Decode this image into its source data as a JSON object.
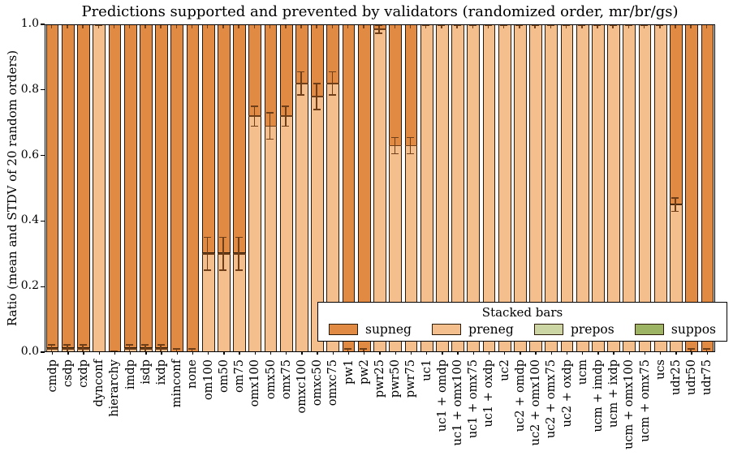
{
  "title": "Predictions supported and prevented by validators (randomized order, mr/br/gs)",
  "axes": {
    "ylabel": "Ratio (mean and STDV of 20 random orders)",
    "yticks": [
      "0.0",
      "0.2",
      "0.4",
      "0.6",
      "0.8",
      "1.0"
    ]
  },
  "legend": {
    "title": "Stacked bars",
    "entries": [
      {
        "label": "supneg",
        "color": "#E08A44"
      },
      {
        "label": "preneg",
        "color": "#F4BF8D"
      },
      {
        "label": "prepos",
        "color": "#CBD6A4"
      },
      {
        "label": "suppos",
        "color": "#9CB464"
      }
    ]
  },
  "colors": {
    "edge": "#2b1a08",
    "error_bar": "#6e3f18",
    "axis": "#000000",
    "background": "#ffffff"
  },
  "chart_data": {
    "type": "bar",
    "stacked": true,
    "title": "Predictions supported and prevented by validators (randomized order, mr/br/gs)",
    "xlabel": "",
    "ylabel": "Ratio (mean and STDV of 20 random orders)",
    "ylim": [
      0.0,
      1.0
    ],
    "grid": false,
    "legend_title": "Stacked bars",
    "legend_position": "lower right",
    "error_bars": "STDV of 20 random orders, drawn at the preneg/supneg boundary and at stack top",
    "categories": [
      "cmdp",
      "csdp",
      "cxdp",
      "dynconf",
      "hierarchy",
      "imdp",
      "isdp",
      "ixdp",
      "minconf",
      "none",
      "om100",
      "om50",
      "om75",
      "omx100",
      "omx50",
      "omx75",
      "omxc100",
      "omxc50",
      "omxc75",
      "pw1",
      "pw2",
      "pwr25",
      "pwr50",
      "pwr75",
      "uc1",
      "uc1 + omdp",
      "uc1 + omx100",
      "uc1 + omx75",
      "uc1 + oxdp",
      "uc2",
      "uc2 + omdp",
      "uc2 + omx100",
      "uc2 + omx75",
      "uc2 + oxdp",
      "ucm",
      "ucm + imdp",
      "ucm + ixdp",
      "ucm + omx100",
      "ucm + omx75",
      "ucs",
      "udr25",
      "udr50",
      "udr75"
    ],
    "series": [
      {
        "name": "preneg",
        "stack_order": "bottom",
        "color": "#F4BF8D",
        "values": [
          0.01,
          0.01,
          0.01,
          1.0,
          0.0,
          0.01,
          0.01,
          0.01,
          0.0,
          0.0,
          0.3,
          0.3,
          0.3,
          0.72,
          0.69,
          0.72,
          0.82,
          0.78,
          0.82,
          0.0,
          0.0,
          0.985,
          0.63,
          0.63,
          1.0,
          1.0,
          1.0,
          1.0,
          1.0,
          1.0,
          1.0,
          1.0,
          1.0,
          1.0,
          1.0,
          1.0,
          1.0,
          1.0,
          1.0,
          1.0,
          0.45,
          0.0,
          0.0
        ]
      },
      {
        "name": "supneg",
        "stack_order": "top",
        "color": "#E08A44",
        "values": [
          0.99,
          0.99,
          0.99,
          0.0,
          1.0,
          0.99,
          0.99,
          0.99,
          1.0,
          1.0,
          0.7,
          0.7,
          0.7,
          0.28,
          0.31,
          0.28,
          0.18,
          0.22,
          0.18,
          1.0,
          1.0,
          0.015,
          0.37,
          0.37,
          0.0,
          0.0,
          0.0,
          0.0,
          0.0,
          0.0,
          0.0,
          0.0,
          0.0,
          0.0,
          0.0,
          0.0,
          0.0,
          0.0,
          0.0,
          0.0,
          0.55,
          1.0,
          1.0
        ]
      },
      {
        "name": "prepos",
        "stack_order": "none-visible",
        "color": "#CBD6A4",
        "values": [
          0,
          0,
          0,
          0,
          0,
          0,
          0,
          0,
          0,
          0,
          0,
          0,
          0,
          0,
          0,
          0,
          0,
          0,
          0,
          0,
          0,
          0,
          0,
          0,
          0,
          0,
          0,
          0,
          0,
          0,
          0,
          0,
          0,
          0,
          0,
          0,
          0,
          0,
          0,
          0,
          0,
          0,
          0
        ]
      },
      {
        "name": "suppos",
        "stack_order": "none-visible",
        "color": "#9CB464",
        "values": [
          0,
          0,
          0,
          0,
          0,
          0,
          0,
          0,
          0,
          0,
          0,
          0,
          0,
          0,
          0,
          0,
          0,
          0,
          0,
          0,
          0,
          0,
          0,
          0,
          0,
          0,
          0,
          0,
          0,
          0,
          0,
          0,
          0,
          0,
          0,
          0,
          0,
          0,
          0,
          0,
          0,
          0,
          0
        ]
      }
    ],
    "preneg_std": [
      0.012,
      0.012,
      0.012,
      0.004,
      0.004,
      0.012,
      0.012,
      0.012,
      0.01,
      0.01,
      0.05,
      0.05,
      0.05,
      0.03,
      0.04,
      0.03,
      0.035,
      0.04,
      0.035,
      0.01,
      0.01,
      0.012,
      0.025,
      0.025,
      0.004,
      0.004,
      0.004,
      0.004,
      0.004,
      0.004,
      0.004,
      0.004,
      0.004,
      0.004,
      0.004,
      0.004,
      0.004,
      0.004,
      0.004,
      0.004,
      0.02,
      0.01,
      0.01
    ]
  }
}
